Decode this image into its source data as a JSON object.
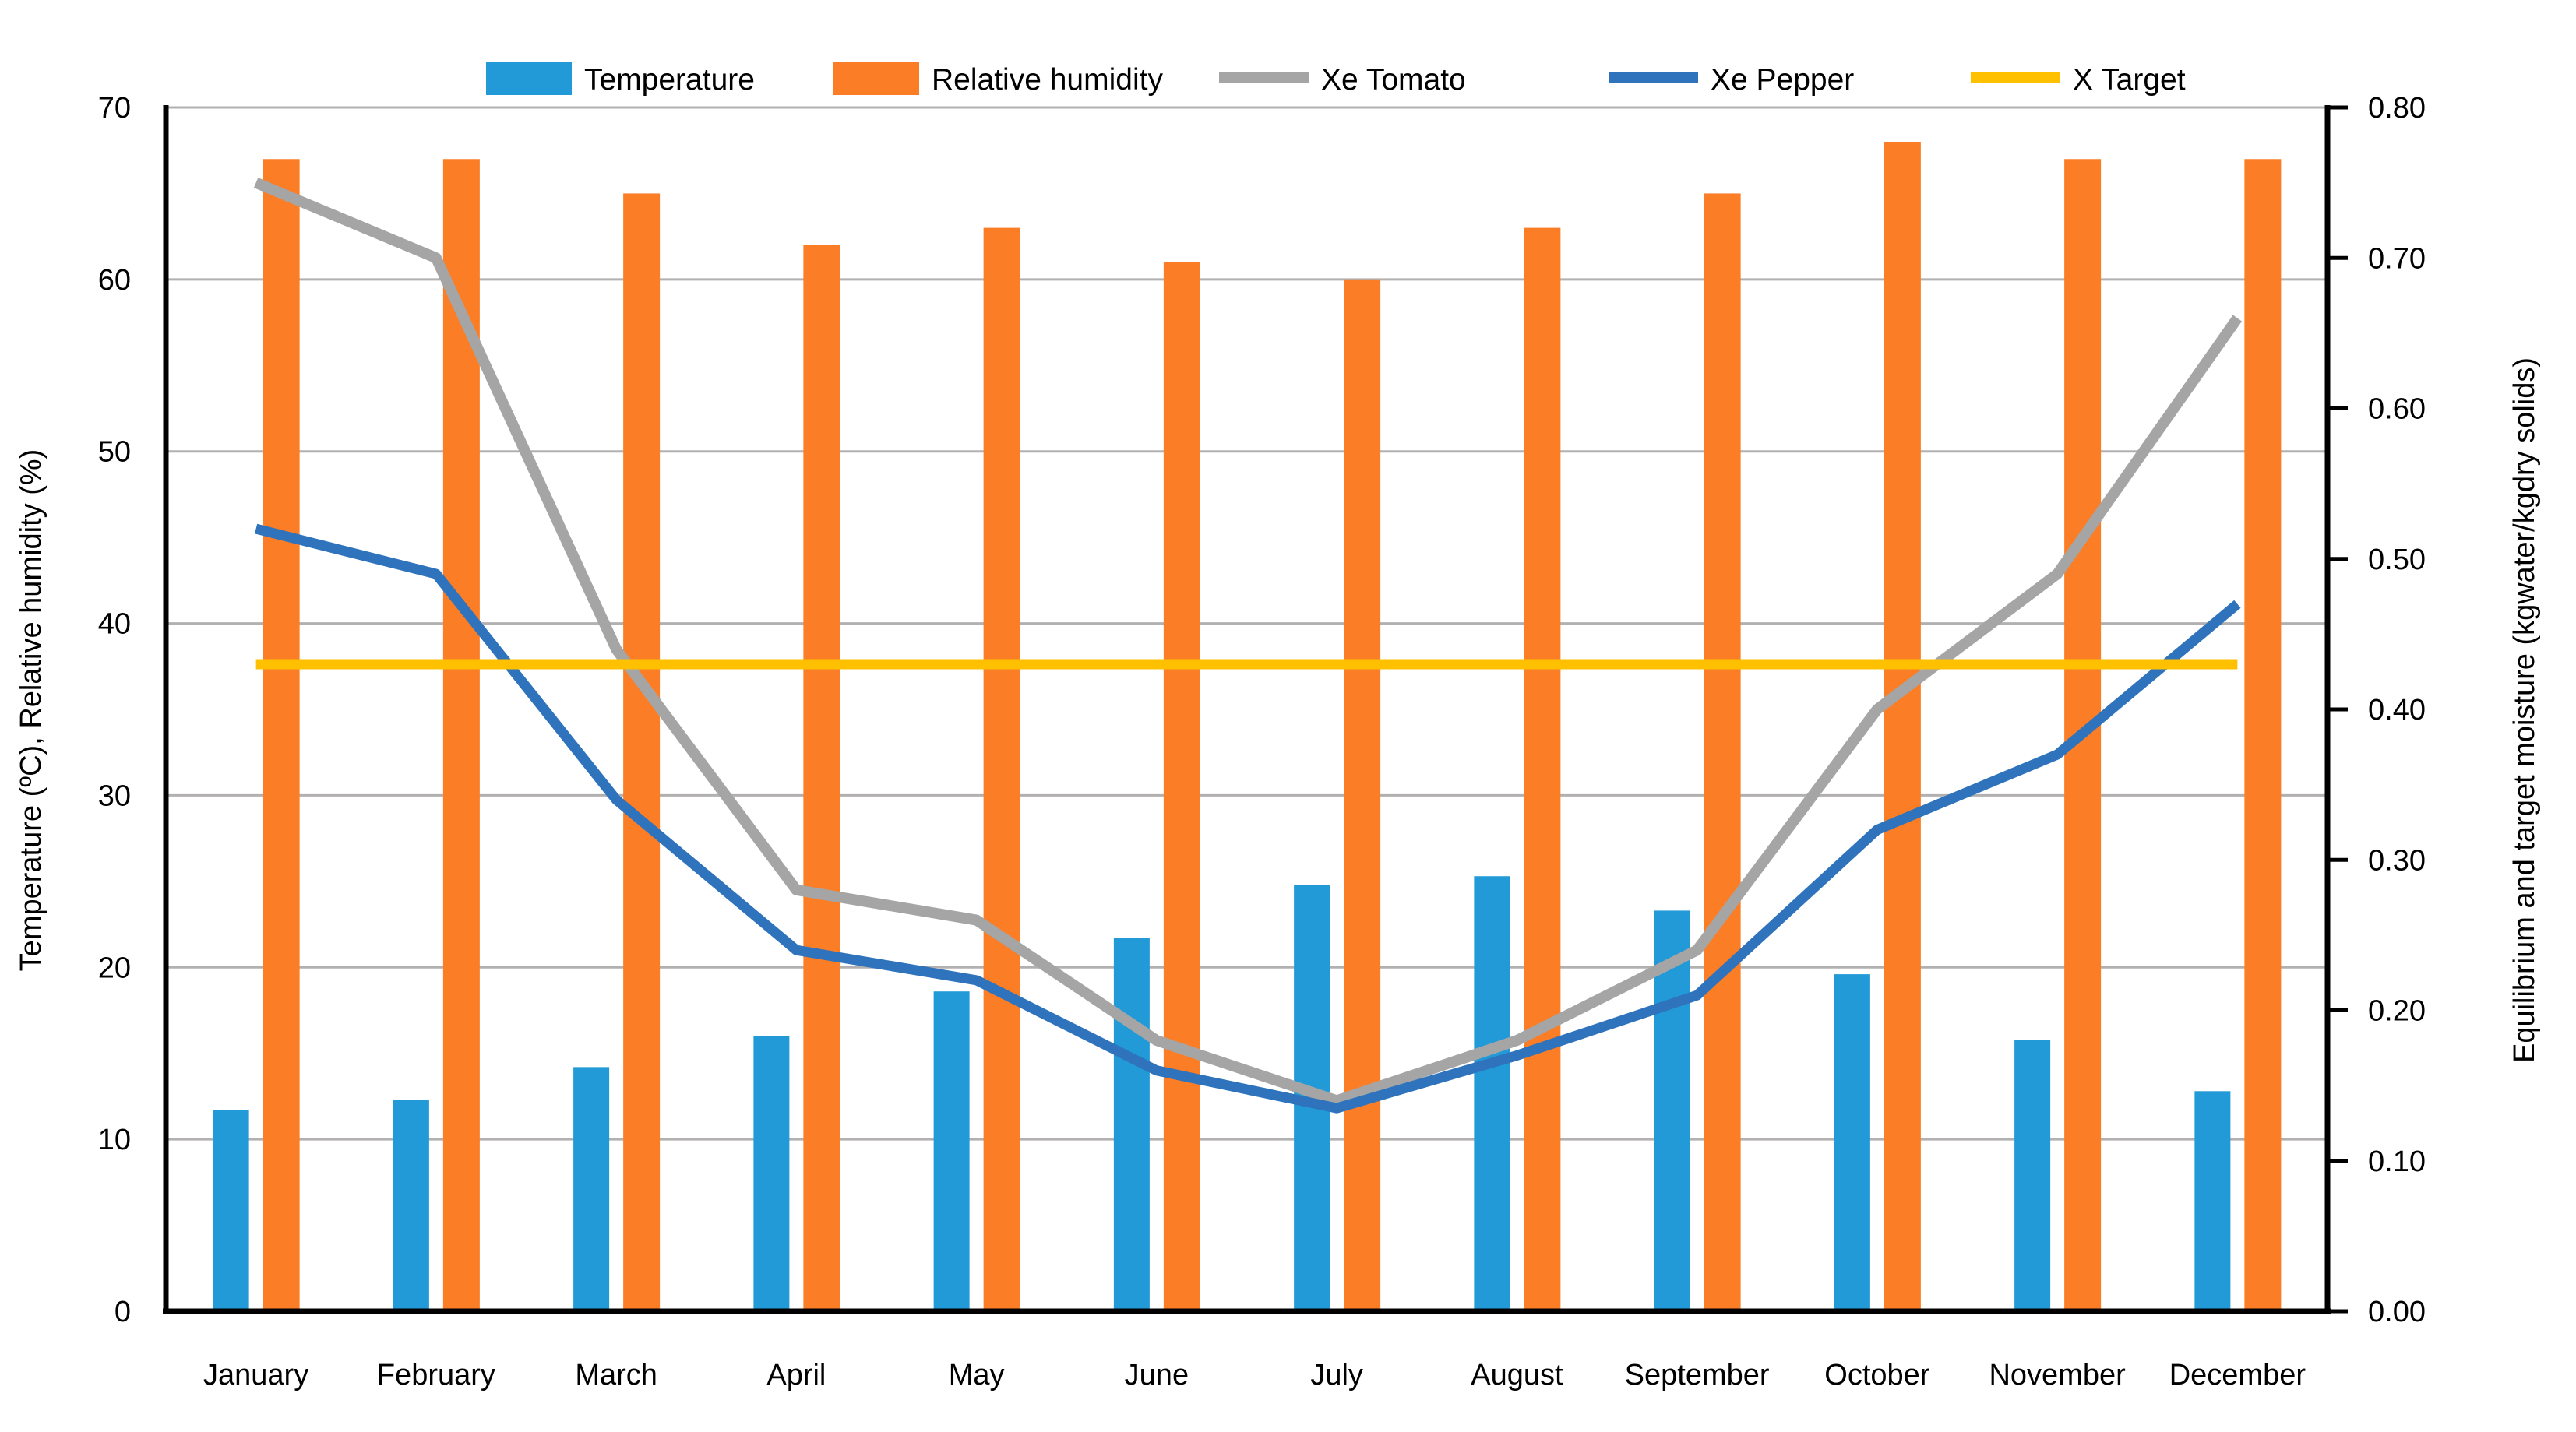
{
  "chart_data": {
    "type": "combo-bar-line",
    "categories": [
      "January",
      "February",
      "March",
      "April",
      "May",
      "June",
      "July",
      "August",
      "September",
      "October",
      "November",
      "December"
    ],
    "series": [
      {
        "name": "Temperature",
        "type": "bar",
        "axis": "left",
        "color": "#219AD7",
        "values": [
          11.7,
          12.3,
          14.2,
          16.0,
          18.6,
          21.7,
          24.8,
          25.3,
          23.3,
          19.6,
          15.8,
          12.8
        ]
      },
      {
        "name": "Relative humidity",
        "type": "bar",
        "axis": "left",
        "color": "#FB7D26",
        "values": [
          67,
          67,
          65,
          62,
          63,
          61,
          60,
          63,
          65,
          68,
          67,
          67
        ]
      },
      {
        "name": "Xe Tomato",
        "type": "line",
        "axis": "right",
        "color": "#A5A5A5",
        "values": [
          0.75,
          0.7,
          0.44,
          0.28,
          0.26,
          0.18,
          0.14,
          0.18,
          0.24,
          0.4,
          0.49,
          0.66
        ]
      },
      {
        "name": "Xe Pepper",
        "type": "line",
        "axis": "right",
        "color": "#2E73BC",
        "values": [
          0.52,
          0.49,
          0.34,
          0.24,
          0.22,
          0.16,
          0.135,
          0.17,
          0.21,
          0.32,
          0.37,
          0.47
        ]
      },
      {
        "name": "X Target",
        "type": "line",
        "axis": "right",
        "color": "#FFC000",
        "values": [
          0.43,
          0.43,
          0.43,
          0.43,
          0.43,
          0.43,
          0.43,
          0.43,
          0.43,
          0.43,
          0.43,
          0.43
        ]
      }
    ],
    "left_axis": {
      "title": "Temperature (ºC), Relative humidity (%)",
      "min": 0,
      "max": 70,
      "step": 10,
      "tick_labels": [
        "0",
        "10",
        "20",
        "30",
        "40",
        "50",
        "60",
        "70"
      ]
    },
    "right_axis": {
      "title": "Equilibrium and target moisture (kgwater/kgdry solids)",
      "min": 0,
      "max": 0.8,
      "step": 0.1,
      "tick_labels": [
        "0.00",
        "0.10",
        "0.20",
        "0.30",
        "0.40",
        "0.50",
        "0.60",
        "0.70",
        "0.80"
      ]
    },
    "legend": {
      "position": "top"
    },
    "grid": {
      "horizontal": true,
      "color": "#B3B0B0"
    },
    "axis_line_color": "#000000",
    "text_color": "#000000",
    "background": "#FFFFFF"
  }
}
